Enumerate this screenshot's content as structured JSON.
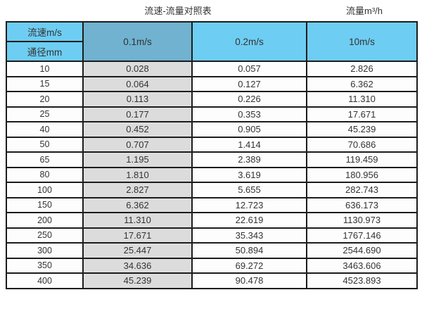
{
  "chart_data": {
    "type": "table",
    "title": "流速-流量对照表",
    "right_label": "流量m³/h",
    "corner": {
      "top": "流速m/s",
      "bottom": "通径mm"
    },
    "velocity_headers": [
      "0.1m/s",
      "0.2m/s",
      "10m/s"
    ],
    "rows": [
      [
        "10",
        "0.028",
        "0.057",
        "2.826"
      ],
      [
        "15",
        "0.064",
        "0.127",
        "6.362"
      ],
      [
        "20",
        "0.113",
        "0.226",
        "11.310"
      ],
      [
        "25",
        "0.177",
        "0.353",
        "17.671"
      ],
      [
        "40",
        "0.452",
        "0.905",
        "45.239"
      ],
      [
        "50",
        "0.707",
        "1.414",
        "70.686"
      ],
      [
        "65",
        "1.195",
        "2.389",
        "119.459"
      ],
      [
        "80",
        "1.810",
        "3.619",
        "180.956"
      ],
      [
        "100",
        "2.827",
        "5.655",
        "282.743"
      ],
      [
        "150",
        "6.362",
        "12.723",
        "636.173"
      ],
      [
        "200",
        "11.310",
        "22.619",
        "1130.973"
      ],
      [
        "250",
        "17.671",
        "35.343",
        "1767.146"
      ],
      [
        "300",
        "25.447",
        "50.894",
        "2544.690"
      ],
      [
        "350",
        "34.636",
        "69.272",
        "3463.606"
      ],
      [
        "400",
        "45.239",
        "90.478",
        "4523.893"
      ]
    ]
  },
  "colors": {
    "header_blue": "#6ECDF2",
    "header_blue_muted": "#70B2D0",
    "col_gray": "#DCDCDC",
    "border": "#1C1C1C",
    "text": "#333333"
  }
}
